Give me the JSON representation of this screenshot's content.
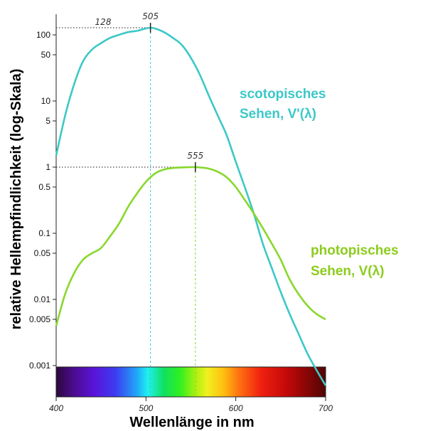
{
  "chart_data": {
    "type": "line",
    "xlabel": "Wellenlänge in nm",
    "ylabel": "relative Hellempfindlichkeit (log-Skala)",
    "xlim": [
      400,
      700
    ],
    "ylim": [
      0.001,
      200
    ],
    "y_scale": "log",
    "x_ticks": [
      "400",
      "500",
      "600",
      "700"
    ],
    "y_ticks": [
      "100",
      "50",
      "10",
      "5",
      "1",
      "0.5",
      "0.1",
      "0.05",
      "0.01",
      "0.005",
      "0.001"
    ],
    "grid": false,
    "spectrum_bar": true,
    "series": [
      {
        "name_lines": [
          "scotopisches",
          "Sehen, V'(λ)"
        ],
        "color": "#3cc8c8",
        "x": [
          400,
          410,
          420,
          430,
          440,
          450,
          460,
          470,
          480,
          490,
          500,
          505,
          510,
          520,
          530,
          540,
          550,
          560,
          570,
          580,
          590,
          600,
          610,
          620,
          630,
          640,
          650,
          660,
          670,
          680,
          690,
          700
        ],
        "y": [
          1.5,
          6,
          18,
          40,
          60,
          75,
          90,
          100,
          110,
          115,
          125,
          128,
          125,
          110,
          90,
          70,
          45,
          25,
          12,
          6,
          3,
          1.2,
          0.5,
          0.2,
          0.07,
          0.03,
          0.013,
          0.006,
          0.003,
          0.0015,
          0.00085,
          0.0005
        ]
      },
      {
        "name_lines": [
          "photopisches",
          "Sehen, V(λ)"
        ],
        "color": "#88d82c",
        "x": [
          400,
          410,
          420,
          430,
          440,
          450,
          460,
          470,
          480,
          490,
          500,
          510,
          520,
          530,
          540,
          550,
          555,
          560,
          570,
          580,
          590,
          600,
          610,
          620,
          630,
          640,
          650,
          660,
          670,
          680,
          690,
          700
        ],
        "y": [
          0.004,
          0.012,
          0.025,
          0.04,
          0.05,
          0.06,
          0.09,
          0.14,
          0.25,
          0.4,
          0.6,
          0.8,
          0.92,
          0.97,
          0.99,
          1.0,
          1.0,
          0.99,
          0.95,
          0.85,
          0.7,
          0.5,
          0.32,
          0.2,
          0.12,
          0.07,
          0.04,
          0.02,
          0.012,
          0.008,
          0.006,
          0.005
        ]
      }
    ],
    "annotations": [
      {
        "text": "128",
        "x": 505,
        "y": 128,
        "series": 0,
        "role": "peak-value"
      },
      {
        "text": "505",
        "x": 505,
        "y": 128,
        "series": 0,
        "role": "peak-wavelength"
      },
      {
        "text": "555",
        "x": 555,
        "y": 1,
        "series": 1,
        "role": "peak-wavelength"
      }
    ]
  }
}
